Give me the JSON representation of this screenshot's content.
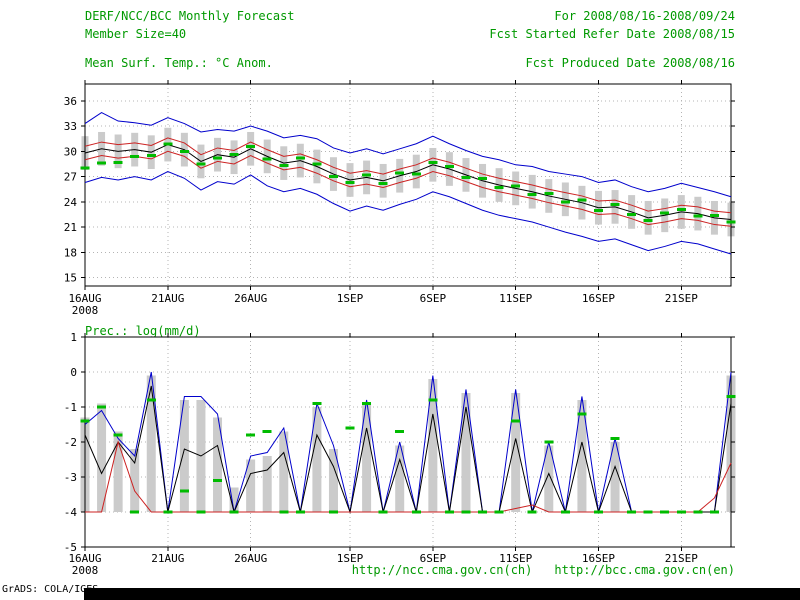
{
  "header": {
    "title": "DERF/NCC/BCC Monthly Forecast",
    "period": "For 2008/08/16-2008/09/24",
    "member_size": "Member Size=40",
    "refer_date": "Fcst Started Refer Date 2008/08/15",
    "produced_date": "Fcst Produced Date 2008/08/16"
  },
  "footer": {
    "url_ch": "http://ncc.cma.gov.cn(ch)",
    "url_en": "http://bcc.cma.gov.cn(en)",
    "grads": "GrADS: COLA/IGES"
  },
  "colors": {
    "blue": "#0000cc",
    "red": "#cc2222",
    "black": "#000000",
    "bar": "#cbcbcb",
    "grid": "#b4b4b4",
    "dash": "#00bb00",
    "text_green": "#009900"
  },
  "chart_data": [
    {
      "type": "line",
      "title": "Mean Surf. Temp.: °C Anom.",
      "xlabel": "",
      "ylabel": "°C Anom.",
      "ylim": [
        14,
        38
      ],
      "yticks": [
        15,
        18,
        21,
        24,
        27,
        30,
        33,
        36
      ],
      "grid": true,
      "legend": "none",
      "xticks": [
        {
          "day": 0,
          "label": "16AUG",
          "sub": "2008"
        },
        {
          "day": 5,
          "label": "21AUG"
        },
        {
          "day": 10,
          "label": "26AUG"
        },
        {
          "day": 16,
          "label": "1SEP"
        },
        {
          "day": 21,
          "label": "6SEP"
        },
        {
          "day": 26,
          "label": "11SEP"
        },
        {
          "day": 31,
          "label": "16SEP"
        },
        {
          "day": 36,
          "label": "21SEP"
        }
      ],
      "bars": {
        "name": "ensemble-spread",
        "top": [
          31.8,
          32.3,
          32.0,
          32.2,
          31.9,
          32.8,
          32.2,
          30.8,
          31.6,
          31.3,
          32.3,
          31.4,
          30.6,
          30.9,
          30.2,
          29.3,
          28.6,
          28.9,
          28.5,
          29.1,
          29.6,
          30.4,
          29.9,
          29.2,
          28.5,
          28.0,
          27.6,
          27.2,
          26.7,
          26.3,
          25.9,
          25.3,
          25.4,
          24.8,
          24.1,
          24.4,
          24.8,
          24.6,
          24.1,
          23.9
        ],
        "bottom": [
          27.8,
          28.3,
          28.0,
          28.2,
          27.9,
          28.8,
          28.2,
          26.8,
          27.6,
          27.3,
          28.3,
          27.4,
          26.6,
          26.9,
          26.2,
          25.3,
          24.6,
          24.9,
          24.5,
          25.1,
          25.6,
          26.4,
          25.9,
          25.2,
          24.5,
          24.0,
          23.6,
          23.2,
          22.7,
          22.3,
          21.9,
          21.3,
          21.4,
          20.8,
          20.1,
          20.4,
          20.8,
          20.6,
          20.1,
          19.9
        ]
      },
      "dashes": {
        "name": "observation",
        "values": [
          28.0,
          28.6,
          28.7,
          29.4,
          29.5,
          30.9,
          30.0,
          28.5,
          29.2,
          29.6,
          30.6,
          29.1,
          28.3,
          29.2,
          28.5,
          27.0,
          26.3,
          27.2,
          26.2,
          27.4,
          27.3,
          28.7,
          28.2,
          26.9,
          26.8,
          25.7,
          25.9,
          24.9,
          25.0,
          24.0,
          24.2,
          23.0,
          23.7,
          22.5,
          21.8,
          22.7,
          23.1,
          22.3,
          22.4,
          21.6
        ]
      },
      "series": [
        {
          "name": "envelope-max",
          "color": "blue",
          "values": [
            33.3,
            34.6,
            33.6,
            33.4,
            33.1,
            34.0,
            33.3,
            32.3,
            32.6,
            32.4,
            33.0,
            32.4,
            31.6,
            31.9,
            31.5,
            30.4,
            29.8,
            30.3,
            29.7,
            30.3,
            30.9,
            31.8,
            30.9,
            30.1,
            29.4,
            29.0,
            28.4,
            28.2,
            27.6,
            27.3,
            27.0,
            26.3,
            26.6,
            25.8,
            25.2,
            25.6,
            26.2,
            25.7,
            25.2,
            24.6
          ]
        },
        {
          "name": "envelope-min",
          "color": "blue",
          "values": [
            26.3,
            26.9,
            26.6,
            27.0,
            26.6,
            27.6,
            26.8,
            25.4,
            26.4,
            26.1,
            27.2,
            25.9,
            25.2,
            25.6,
            24.9,
            23.8,
            22.9,
            23.5,
            23.0,
            23.7,
            24.3,
            25.2,
            24.6,
            23.8,
            23.0,
            22.4,
            22.0,
            21.6,
            21.0,
            20.4,
            19.9,
            19.3,
            19.6,
            18.9,
            18.2,
            18.7,
            19.3,
            19.0,
            18.4,
            17.8
          ]
        },
        {
          "name": "quartile-upper",
          "color": "red",
          "values": [
            30.6,
            31.1,
            30.8,
            31.0,
            30.7,
            31.6,
            31.0,
            29.6,
            30.4,
            30.1,
            31.1,
            30.2,
            29.4,
            29.7,
            29.0,
            28.1,
            27.4,
            27.7,
            27.3,
            27.9,
            28.4,
            29.2,
            28.7,
            28.0,
            27.3,
            26.8,
            26.4,
            26.0,
            25.5,
            25.1,
            24.7,
            24.1,
            24.2,
            23.6,
            22.9,
            23.2,
            23.6,
            23.4,
            22.9,
            22.7
          ]
        },
        {
          "name": "quartile-lower",
          "color": "red",
          "values": [
            29.0,
            29.5,
            29.2,
            29.4,
            29.1,
            30.0,
            29.4,
            28.0,
            28.8,
            28.5,
            29.5,
            28.6,
            27.8,
            28.1,
            27.4,
            26.5,
            25.8,
            26.1,
            25.7,
            26.3,
            26.8,
            27.6,
            27.1,
            26.4,
            25.7,
            25.2,
            24.8,
            24.4,
            23.9,
            23.5,
            23.1,
            22.5,
            22.6,
            22.0,
            21.3,
            21.6,
            22.0,
            21.8,
            21.3,
            21.1
          ]
        },
        {
          "name": "ensemble-mean",
          "color": "black",
          "values": [
            29.8,
            30.3,
            30.0,
            30.2,
            29.9,
            30.8,
            30.2,
            28.8,
            29.6,
            29.3,
            30.3,
            29.4,
            28.6,
            28.9,
            28.2,
            27.3,
            26.6,
            26.9,
            26.5,
            27.1,
            27.6,
            28.4,
            27.9,
            27.2,
            26.5,
            26.0,
            25.6,
            25.2,
            24.7,
            24.3,
            23.9,
            23.3,
            23.4,
            22.8,
            22.1,
            22.4,
            22.8,
            22.6,
            22.1,
            21.9
          ]
        }
      ]
    },
    {
      "type": "bar+line",
      "title": "Prec.: log(mm/d)",
      "xlabel": "",
      "ylabel": "log(mm/d)",
      "ylim": [
        -5,
        1
      ],
      "yticks": [
        1,
        0,
        -1,
        -2,
        -3,
        -4,
        -5
      ],
      "grid": true,
      "legend": "none",
      "xticks": [
        {
          "day": 0,
          "label": "16AUG",
          "sub": "2008"
        },
        {
          "day": 5,
          "label": "21AUG"
        },
        {
          "day": 10,
          "label": "26AUG"
        },
        {
          "day": 16,
          "label": "1SEP"
        },
        {
          "day": 21,
          "label": "6SEP"
        },
        {
          "day": 26,
          "label": "11SEP"
        },
        {
          "day": 31,
          "label": "16SEP"
        },
        {
          "day": 36,
          "label": "21SEP"
        }
      ],
      "bars": {
        "name": "ensemble-spread",
        "base": -4,
        "top": [
          -1.3,
          -0.9,
          -1.7,
          -2.2,
          -0.1,
          -4.0,
          -0.8,
          -0.8,
          -1.3,
          -3.3,
          -2.5,
          -2.4,
          -1.7,
          -4.0,
          -1.0,
          -2.2,
          -4.0,
          -0.9,
          -4.0,
          -2.1,
          -4.0,
          -0.2,
          -4.0,
          -0.6,
          -4.0,
          -4.0,
          -0.6,
          -4.0,
          -2.1,
          -4.0,
          -0.8,
          -4.0,
          -2.0,
          -4.0,
          -4.0,
          -4.0,
          -4.0,
          -4.0,
          -4.0,
          -0.1
        ]
      },
      "dashes": {
        "name": "observation",
        "values": [
          -1.4,
          -1.0,
          -1.8,
          -4.0,
          -0.8,
          -4.0,
          -3.4,
          -4.0,
          -3.1,
          -4.0,
          -1.8,
          -1.7,
          -4.0,
          -4.0,
          -0.9,
          -4.0,
          -1.6,
          -0.9,
          -4.0,
          -1.7,
          -4.0,
          -0.8,
          -4.0,
          -4.0,
          -4.0,
          -4.0,
          -1.4,
          -4.0,
          -2.0,
          -4.0,
          -1.2,
          -4.0,
          -1.9,
          -4.0,
          -4.0,
          -4.0,
          -4.0,
          -4.0,
          -4.0,
          -0.7
        ]
      },
      "series": [
        {
          "name": "envelope-max",
          "color": "blue",
          "values": [
            -1.5,
            -1.1,
            -1.9,
            -2.4,
            0.0,
            -4.0,
            -0.7,
            -0.7,
            -1.2,
            -4.0,
            -2.4,
            -2.3,
            -1.6,
            -4.0,
            -0.9,
            -2.1,
            -4.0,
            -0.8,
            -4.0,
            -2.0,
            -4.0,
            -0.1,
            -4.0,
            -0.5,
            -4.0,
            -4.0,
            -0.5,
            -4.0,
            -2.0,
            -4.0,
            -0.7,
            -4.0,
            -1.9,
            -4.0,
            -4.0,
            -4.0,
            -4.0,
            -4.0,
            -4.0,
            0.0
          ]
        },
        {
          "name": "ensemble-mean",
          "color": "black",
          "values": [
            -1.8,
            -2.9,
            -2.0,
            -2.6,
            -0.4,
            -4.0,
            -2.2,
            -2.4,
            -2.1,
            -4.0,
            -2.9,
            -2.8,
            -2.3,
            -4.0,
            -1.8,
            -2.7,
            -4.0,
            -1.6,
            -4.0,
            -2.5,
            -4.0,
            -1.2,
            -4.0,
            -1.0,
            -4.0,
            -4.0,
            -1.9,
            -4.0,
            -2.9,
            -4.0,
            -2.0,
            -4.0,
            -2.7,
            -4.0,
            -4.0,
            -4.0,
            -4.0,
            -4.0,
            -4.0,
            -0.9
          ]
        },
        {
          "name": "control-run",
          "color": "red",
          "values": [
            -4.0,
            -4.0,
            -2.0,
            -3.4,
            -4.0,
            -4.0,
            -4.0,
            -4.0,
            -4.0,
            -4.0,
            -4.0,
            -4.0,
            -4.0,
            -4.0,
            -4.0,
            -4.0,
            -4.0,
            -4.0,
            -4.0,
            -4.0,
            -4.0,
            -4.0,
            -4.0,
            -4.0,
            -4.0,
            -4.0,
            -3.9,
            -3.8,
            -4.0,
            -4.0,
            -4.0,
            -4.0,
            -4.0,
            -4.0,
            -4.0,
            -4.0,
            -4.0,
            -4.0,
            -3.6,
            -2.6
          ]
        }
      ]
    }
  ]
}
